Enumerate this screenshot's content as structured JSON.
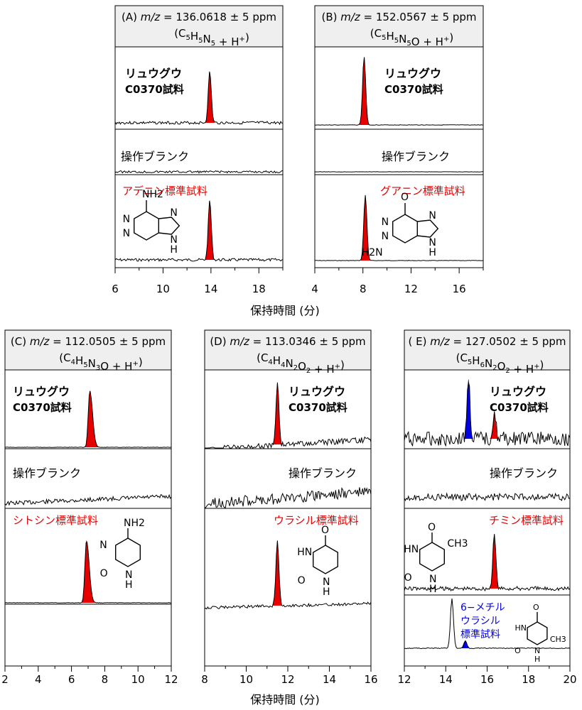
{
  "figure": {
    "xlabel": "保持時間 (分)",
    "sample_label": [
      "リュウグウ",
      "C0370試料"
    ],
    "blank_label": "操作ブランク",
    "panels": [
      {
        "id": "A",
        "header_prefix": "(A) ",
        "header_mz_label": "m/z",
        "header_mz_value": " = 136.0618 ± 5 ppm",
        "formula": "(C5H5N5 + H+)",
        "formula_parts": [
          [
            "(C",
            ""
          ],
          [
            "5",
            "sub"
          ],
          [
            "H",
            ""
          ],
          [
            "5",
            "sub"
          ],
          [
            "N",
            ""
          ],
          [
            "5",
            "sub"
          ],
          [
            " + H",
            ""
          ],
          [
            "+",
            "sup"
          ],
          [
            ")",
            ""
          ]
        ],
        "standard_label": [
          "アデニン標準試料"
        ],
        "standard_color": "#e60000",
        "molecule": "adenine",
        "molecule_atoms": [
          "NH2",
          "N",
          "N",
          "N",
          "N",
          "H"
        ]
      },
      {
        "id": "B",
        "header_prefix": "(B) ",
        "header_mz_label": "m/z",
        "header_mz_value": " = 152.0567 ± 5 ppm",
        "formula": "(C5H5N5O + H+)",
        "formula_parts": [
          [
            "(C",
            ""
          ],
          [
            "5",
            "sub"
          ],
          [
            "H",
            ""
          ],
          [
            "5",
            "sub"
          ],
          [
            "N",
            ""
          ],
          [
            "5",
            "sub"
          ],
          [
            "O + H",
            ""
          ],
          [
            "+",
            "sup"
          ],
          [
            ")",
            ""
          ]
        ],
        "standard_label": [
          "グアニン標準試料"
        ],
        "standard_color": "#e60000",
        "molecule": "guanine",
        "molecule_atoms": [
          "O",
          "N",
          "N",
          "N",
          "N",
          "H",
          "H2N"
        ]
      },
      {
        "id": "C",
        "header_prefix": "(C) ",
        "header_mz_label": "m/z",
        "header_mz_value": " = 112.0505 ± 5 ppm",
        "formula": "(C4H5N3O + H+)",
        "formula_parts": [
          [
            "(C",
            ""
          ],
          [
            "4",
            "sub"
          ],
          [
            "H",
            ""
          ],
          [
            "5",
            "sub"
          ],
          [
            "N",
            ""
          ],
          [
            "3",
            "sub"
          ],
          [
            "O + H",
            ""
          ],
          [
            "+",
            "sup"
          ],
          [
            ")",
            ""
          ]
        ],
        "standard_label": [
          "シトシン標準試料"
        ],
        "standard_color": "#e60000",
        "molecule": "cytosine",
        "molecule_atoms": [
          "NH2",
          "N",
          "O",
          "N",
          "H"
        ]
      },
      {
        "id": "D",
        "header_prefix": "(D) ",
        "header_mz_label": "m/z",
        "header_mz_value": " = 113.0346 ± 5 ppm",
        "formula": "(C4H4N2O2 + H+)",
        "formula_parts": [
          [
            "(C",
            ""
          ],
          [
            "4",
            "sub"
          ],
          [
            "H",
            ""
          ],
          [
            "4",
            "sub"
          ],
          [
            "N",
            ""
          ],
          [
            "2",
            "sub"
          ],
          [
            "O",
            ""
          ],
          [
            "2",
            "sub"
          ],
          [
            " + H",
            ""
          ],
          [
            "+",
            "sup"
          ],
          [
            ")",
            ""
          ]
        ],
        "standard_label": [
          "ウラシル標準試料"
        ],
        "standard_color": "#e60000",
        "molecule": "uracil",
        "molecule_atoms": [
          "O",
          "HN",
          "O",
          "N",
          "H"
        ]
      },
      {
        "id": "E",
        "header_prefix": "( E) ",
        "header_mz_label": "m/z",
        "header_mz_value": " = 127.0502 ± 5 ppm",
        "formula": "(C5H6N2O2 + H+)",
        "formula_parts": [
          [
            "(C",
            ""
          ],
          [
            "5",
            "sub"
          ],
          [
            "H",
            ""
          ],
          [
            "6",
            "sub"
          ],
          [
            "N",
            ""
          ],
          [
            "2",
            "sub"
          ],
          [
            "O",
            ""
          ],
          [
            "2",
            "sub"
          ],
          [
            " + H",
            ""
          ],
          [
            "+",
            "sup"
          ],
          [
            ")",
            ""
          ]
        ],
        "standard_label": [
          "チミン標準試料"
        ],
        "standard_color": "#e60000",
        "second_standard_label": [
          "6−メチル",
          "ウラシル",
          "標準試料"
        ],
        "second_standard_color": "#0000e6",
        "molecule": "thymine",
        "molecule_atoms": [
          "O",
          "HN",
          "CH3",
          "O",
          "N",
          "H"
        ],
        "second_molecule": "6-methyluracil",
        "second_molecule_atoms": [
          "O",
          "HN",
          "O",
          "N",
          "H",
          "CH3"
        ]
      }
    ]
  },
  "chart_data": [
    {
      "type": "line",
      "panel": "A",
      "xlabel": "保持時間 (分)",
      "xlim": [
        6,
        20
      ],
      "xticks": [
        6,
        10,
        14,
        18
      ],
      "series": [
        {
          "name": "リュウグウ C0370試料",
          "peaks": [
            {
              "x": 13.9,
              "height": 1.0,
              "color": "#e60000"
            }
          ]
        },
        {
          "name": "操作ブランク",
          "peaks": []
        },
        {
          "name": "アデニン標準試料",
          "peaks": [
            {
              "x": 13.9,
              "height": 1.0,
              "color": "#e60000"
            }
          ]
        }
      ]
    },
    {
      "type": "line",
      "panel": "B",
      "xlabel": "保持時間 (分)",
      "xlim": [
        4,
        18
      ],
      "xticks": [
        4,
        8,
        12,
        16
      ],
      "series": [
        {
          "name": "リュウグウ C0370試料",
          "peaks": [
            {
              "x": 8.1,
              "height": 1.0,
              "color": "#e60000"
            }
          ]
        },
        {
          "name": "操作ブランク",
          "peaks": [
            {
              "x": 8.0,
              "height": 0.06,
              "color": "#e60000"
            }
          ]
        },
        {
          "name": "グアニン標準試料",
          "peaks": [
            {
              "x": 8.2,
              "height": 1.0,
              "color": "#e60000"
            }
          ]
        }
      ]
    },
    {
      "type": "line",
      "panel": "C",
      "xlabel": "保持時間 (分)",
      "xlim": [
        2,
        12
      ],
      "xticks": [
        2,
        4,
        6,
        8,
        10,
        12
      ],
      "series": [
        {
          "name": "リュウグウ C0370試料",
          "peaks": [
            {
              "x": 7.1,
              "height": 1.0,
              "color": "#e60000"
            }
          ]
        },
        {
          "name": "操作ブランク",
          "peaks": []
        },
        {
          "name": "シトシン標準試料",
          "peaks": [
            {
              "x": 6.9,
              "height": 1.0,
              "color": "#e60000"
            }
          ]
        }
      ]
    },
    {
      "type": "line",
      "panel": "D",
      "xlabel": "保持時間 (分)",
      "xlim": [
        8,
        16
      ],
      "xticks": [
        8,
        10,
        12,
        14,
        16
      ],
      "series": [
        {
          "name": "リュウグウ C0370試料",
          "peaks": [
            {
              "x": 11.5,
              "height": 1.0,
              "color": "#e60000"
            }
          ]
        },
        {
          "name": "操作ブランク",
          "peaks": []
        },
        {
          "name": "ウラシル標準試料",
          "peaks": [
            {
              "x": 11.5,
              "height": 1.0,
              "color": "#e60000"
            }
          ]
        }
      ]
    },
    {
      "type": "line",
      "panel": "E",
      "xlabel": "保持時間 (分)",
      "xlim": [
        12,
        20
      ],
      "xticks": [
        12,
        14,
        16,
        18,
        20
      ],
      "series": [
        {
          "name": "リュウグウ C0370試料",
          "peaks": [
            {
              "x": 15.1,
              "height": 1.0,
              "color": "#0000e6"
            },
            {
              "x": 16.35,
              "height": 0.45,
              "color": "#e60000"
            }
          ]
        },
        {
          "name": "操作ブランク",
          "peaks": []
        },
        {
          "name": "チミン標準試料",
          "peaks": [
            {
              "x": 16.35,
              "height": 1.0,
              "color": "#e60000"
            }
          ]
        },
        {
          "name": "6−メチルウラシル標準試料",
          "peaks": [
            {
              "x": 14.3,
              "height": 1.0,
              "color": "#000000"
            },
            {
              "x": 14.95,
              "height": 0.15,
              "color": "#0000e6"
            }
          ]
        }
      ]
    }
  ]
}
